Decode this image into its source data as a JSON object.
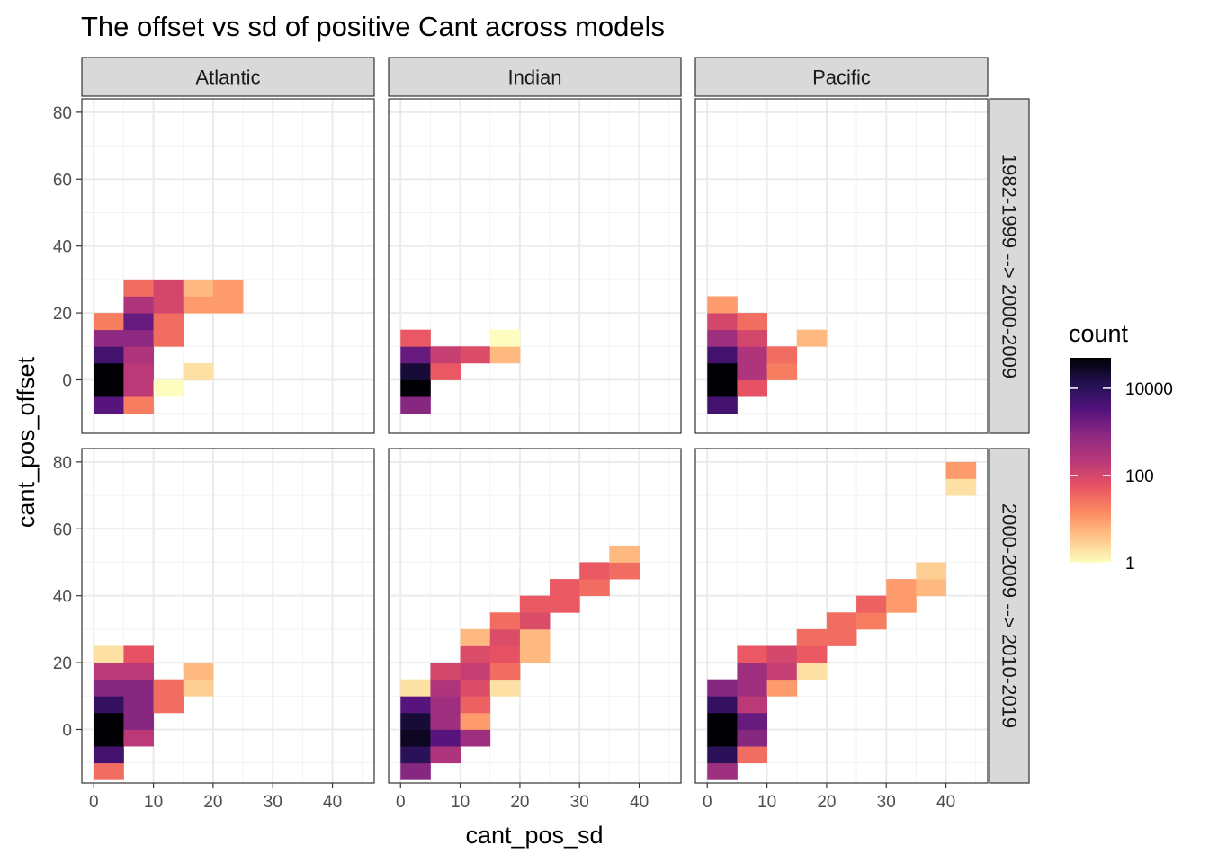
{
  "chart_data": {
    "type": "heatmap",
    "title": "The offset vs sd of positive Cant across models",
    "xlabel": "cant_pos_sd",
    "ylabel": "cant_pos_offset",
    "xlim": [
      -2,
      47
    ],
    "ylim": [
      -16,
      84
    ],
    "x_ticks": [
      0,
      10,
      20,
      30,
      40
    ],
    "y_ticks": [
      0,
      20,
      40,
      60,
      80
    ],
    "bin_width_x": 5,
    "bin_width_y": 5,
    "grid": true,
    "legend": {
      "title": "count",
      "position": "right",
      "scale": "log10",
      "domain": [
        1,
        50000
      ],
      "labels": [
        {
          "value": 10000,
          "label": "10000"
        },
        {
          "value": 100,
          "label": "100"
        },
        {
          "value": 1,
          "label": "1"
        }
      ],
      "colors": [
        "#fcfdbf",
        "#fec488",
        "#fc8961",
        "#e75263",
        "#b73779",
        "#8c2981",
        "#51127c",
        "#221150",
        "#000004"
      ]
    },
    "columns": [
      "Atlantic",
      "Indian",
      "Pacific"
    ],
    "rows": [
      "1982-1999 --> 2000-2009",
      "2000-2009 --> 2010-2019"
    ],
    "panels": [
      {
        "column": "Atlantic",
        "row": "1982-1999 --> 2000-2009",
        "cells": [
          {
            "x": 2.5,
            "y": -7.5,
            "count": 3000
          },
          {
            "x": 2.5,
            "y": -2.5,
            "count": 50000
          },
          {
            "x": 2.5,
            "y": 2.5,
            "count": 50000
          },
          {
            "x": 2.5,
            "y": 7.5,
            "count": 5000
          },
          {
            "x": 2.5,
            "y": 12.5,
            "count": 800
          },
          {
            "x": 2.5,
            "y": 17.5,
            "count": 20
          },
          {
            "x": 7.5,
            "y": -7.5,
            "count": 20
          },
          {
            "x": 7.5,
            "y": -2.5,
            "count": 200
          },
          {
            "x": 7.5,
            "y": 2.5,
            "count": 200
          },
          {
            "x": 7.5,
            "y": 7.5,
            "count": 300
          },
          {
            "x": 7.5,
            "y": 12.5,
            "count": 800
          },
          {
            "x": 7.5,
            "y": 17.5,
            "count": 2000
          },
          {
            "x": 7.5,
            "y": 22.5,
            "count": 300
          },
          {
            "x": 7.5,
            "y": 27.5,
            "count": 30
          },
          {
            "x": 12.5,
            "y": -2.5,
            "count": 1
          },
          {
            "x": 12.5,
            "y": 12.5,
            "count": 30
          },
          {
            "x": 12.5,
            "y": 17.5,
            "count": 30
          },
          {
            "x": 12.5,
            "y": 22.5,
            "count": 100
          },
          {
            "x": 12.5,
            "y": 27.5,
            "count": 100
          },
          {
            "x": 17.5,
            "y": 2.5,
            "count": 2
          },
          {
            "x": 17.5,
            "y": 22.5,
            "count": 10
          },
          {
            "x": 17.5,
            "y": 27.5,
            "count": 5
          },
          {
            "x": 22.5,
            "y": 22.5,
            "count": 10
          },
          {
            "x": 22.5,
            "y": 27.5,
            "count": 10
          }
        ]
      },
      {
        "column": "Indian",
        "row": "1982-1999 --> 2000-2009",
        "cells": [
          {
            "x": 2.5,
            "y": -7.5,
            "count": 1000
          },
          {
            "x": 2.5,
            "y": -2.5,
            "count": 50000
          },
          {
            "x": 2.5,
            "y": 2.5,
            "count": 20000
          },
          {
            "x": 2.5,
            "y": 7.5,
            "count": 2000
          },
          {
            "x": 2.5,
            "y": 12.5,
            "count": 50
          },
          {
            "x": 7.5,
            "y": 2.5,
            "count": 50
          },
          {
            "x": 7.5,
            "y": 7.5,
            "count": 150
          },
          {
            "x": 12.5,
            "y": 7.5,
            "count": 80
          },
          {
            "x": 17.5,
            "y": 7.5,
            "count": 5
          },
          {
            "x": 17.5,
            "y": 12.5,
            "count": 1
          }
        ]
      },
      {
        "column": "Pacific",
        "row": "1982-1999 --> 2000-2009",
        "cells": [
          {
            "x": 2.5,
            "y": -7.5,
            "count": 5000
          },
          {
            "x": 2.5,
            "y": -2.5,
            "count": 80000
          },
          {
            "x": 2.5,
            "y": 2.5,
            "count": 80000
          },
          {
            "x": 2.5,
            "y": 7.5,
            "count": 5000
          },
          {
            "x": 2.5,
            "y": 12.5,
            "count": 500
          },
          {
            "x": 2.5,
            "y": 17.5,
            "count": 100
          },
          {
            "x": 2.5,
            "y": 22.5,
            "count": 10
          },
          {
            "x": 7.5,
            "y": -2.5,
            "count": 60
          },
          {
            "x": 7.5,
            "y": 2.5,
            "count": 300
          },
          {
            "x": 7.5,
            "y": 7.5,
            "count": 300
          },
          {
            "x": 7.5,
            "y": 12.5,
            "count": 100
          },
          {
            "x": 7.5,
            "y": 17.5,
            "count": 30
          },
          {
            "x": 12.5,
            "y": 2.5,
            "count": 20
          },
          {
            "x": 12.5,
            "y": 7.5,
            "count": 30
          },
          {
            "x": 17.5,
            "y": 12.5,
            "count": 5
          }
        ]
      },
      {
        "column": "Atlantic",
        "row": "2000-2009 --> 2010-2019",
        "cells": [
          {
            "x": 2.5,
            "y": -12.5,
            "count": 30
          },
          {
            "x": 2.5,
            "y": -7.5,
            "count": 5000
          },
          {
            "x": 2.5,
            "y": -2.5,
            "count": 50000
          },
          {
            "x": 2.5,
            "y": 2.5,
            "count": 50000
          },
          {
            "x": 2.5,
            "y": 7.5,
            "count": 8000
          },
          {
            "x": 2.5,
            "y": 12.5,
            "count": 1000
          },
          {
            "x": 2.5,
            "y": 17.5,
            "count": 200
          },
          {
            "x": 2.5,
            "y": 22.5,
            "count": 2
          },
          {
            "x": 7.5,
            "y": -2.5,
            "count": 200
          },
          {
            "x": 7.5,
            "y": 2.5,
            "count": 1000
          },
          {
            "x": 7.5,
            "y": 7.5,
            "count": 1000
          },
          {
            "x": 7.5,
            "y": 12.5,
            "count": 1000
          },
          {
            "x": 7.5,
            "y": 17.5,
            "count": 200
          },
          {
            "x": 7.5,
            "y": 22.5,
            "count": 60
          },
          {
            "x": 12.5,
            "y": 7.5,
            "count": 30
          },
          {
            "x": 12.5,
            "y": 12.5,
            "count": 30
          },
          {
            "x": 17.5,
            "y": 12.5,
            "count": 3
          },
          {
            "x": 17.5,
            "y": 17.5,
            "count": 5
          }
        ]
      },
      {
        "column": "Indian",
        "row": "2000-2009 --> 2010-2019",
        "cells": [
          {
            "x": 2.5,
            "y": -12.5,
            "count": 1000
          },
          {
            "x": 2.5,
            "y": -7.5,
            "count": 10000
          },
          {
            "x": 2.5,
            "y": -2.5,
            "count": 30000
          },
          {
            "x": 2.5,
            "y": 2.5,
            "count": 20000
          },
          {
            "x": 2.5,
            "y": 7.5,
            "count": 3000
          },
          {
            "x": 2.5,
            "y": 12.5,
            "count": 2
          },
          {
            "x": 7.5,
            "y": -7.5,
            "count": 300
          },
          {
            "x": 7.5,
            "y": -2.5,
            "count": 3000
          },
          {
            "x": 7.5,
            "y": 2.5,
            "count": 500
          },
          {
            "x": 7.5,
            "y": 7.5,
            "count": 500
          },
          {
            "x": 7.5,
            "y": 12.5,
            "count": 300
          },
          {
            "x": 7.5,
            "y": 17.5,
            "count": 100
          },
          {
            "x": 12.5,
            "y": -2.5,
            "count": 500
          },
          {
            "x": 12.5,
            "y": 2.5,
            "count": 10
          },
          {
            "x": 12.5,
            "y": 7.5,
            "count": 40
          },
          {
            "x": 12.5,
            "y": 12.5,
            "count": 80
          },
          {
            "x": 12.5,
            "y": 17.5,
            "count": 150
          },
          {
            "x": 12.5,
            "y": 22.5,
            "count": 80
          },
          {
            "x": 12.5,
            "y": 27.5,
            "count": 5
          },
          {
            "x": 17.5,
            "y": 12.5,
            "count": 2
          },
          {
            "x": 17.5,
            "y": 17.5,
            "count": 30
          },
          {
            "x": 17.5,
            "y": 22.5,
            "count": 60
          },
          {
            "x": 17.5,
            "y": 27.5,
            "count": 80
          },
          {
            "x": 17.5,
            "y": 32.5,
            "count": 30
          },
          {
            "x": 22.5,
            "y": 22.5,
            "count": 5
          },
          {
            "x": 22.5,
            "y": 27.5,
            "count": 5
          },
          {
            "x": 22.5,
            "y": 32.5,
            "count": 80
          },
          {
            "x": 22.5,
            "y": 37.5,
            "count": 50
          },
          {
            "x": 27.5,
            "y": 37.5,
            "count": 50
          },
          {
            "x": 27.5,
            "y": 42.5,
            "count": 50
          },
          {
            "x": 32.5,
            "y": 42.5,
            "count": 30
          },
          {
            "x": 32.5,
            "y": 47.5,
            "count": 50
          },
          {
            "x": 37.5,
            "y": 47.5,
            "count": 30
          },
          {
            "x": 37.5,
            "y": 52.5,
            "count": 5
          }
        ]
      },
      {
        "column": "Pacific",
        "row": "2000-2009 --> 2010-2019",
        "cells": [
          {
            "x": 2.5,
            "y": -12.5,
            "count": 500
          },
          {
            "x": 2.5,
            "y": -7.5,
            "count": 10000
          },
          {
            "x": 2.5,
            "y": -2.5,
            "count": 80000
          },
          {
            "x": 2.5,
            "y": 2.5,
            "count": 80000
          },
          {
            "x": 2.5,
            "y": 7.5,
            "count": 8000
          },
          {
            "x": 2.5,
            "y": 12.5,
            "count": 1000
          },
          {
            "x": 7.5,
            "y": -7.5,
            "count": 30
          },
          {
            "x": 7.5,
            "y": -2.5,
            "count": 1000
          },
          {
            "x": 7.5,
            "y": 2.5,
            "count": 2000
          },
          {
            "x": 7.5,
            "y": 7.5,
            "count": 200
          },
          {
            "x": 7.5,
            "y": 12.5,
            "count": 500
          },
          {
            "x": 7.5,
            "y": 17.5,
            "count": 500
          },
          {
            "x": 7.5,
            "y": 22.5,
            "count": 50
          },
          {
            "x": 12.5,
            "y": 12.5,
            "count": 10
          },
          {
            "x": 12.5,
            "y": 17.5,
            "count": 150
          },
          {
            "x": 12.5,
            "y": 22.5,
            "count": 100
          },
          {
            "x": 17.5,
            "y": 17.5,
            "count": 2
          },
          {
            "x": 17.5,
            "y": 22.5,
            "count": 50
          },
          {
            "x": 17.5,
            "y": 27.5,
            "count": 30
          },
          {
            "x": 22.5,
            "y": 27.5,
            "count": 30
          },
          {
            "x": 22.5,
            "y": 32.5,
            "count": 30
          },
          {
            "x": 27.5,
            "y": 32.5,
            "count": 20
          },
          {
            "x": 27.5,
            "y": 37.5,
            "count": 40
          },
          {
            "x": 32.5,
            "y": 37.5,
            "count": 10
          },
          {
            "x": 32.5,
            "y": 42.5,
            "count": 10
          },
          {
            "x": 37.5,
            "y": 42.5,
            "count": 5
          },
          {
            "x": 37.5,
            "y": 47.5,
            "count": 3
          },
          {
            "x": 42.5,
            "y": 72.5,
            "count": 2
          },
          {
            "x": 42.5,
            "y": 77.5,
            "count": 10
          }
        ]
      }
    ]
  }
}
